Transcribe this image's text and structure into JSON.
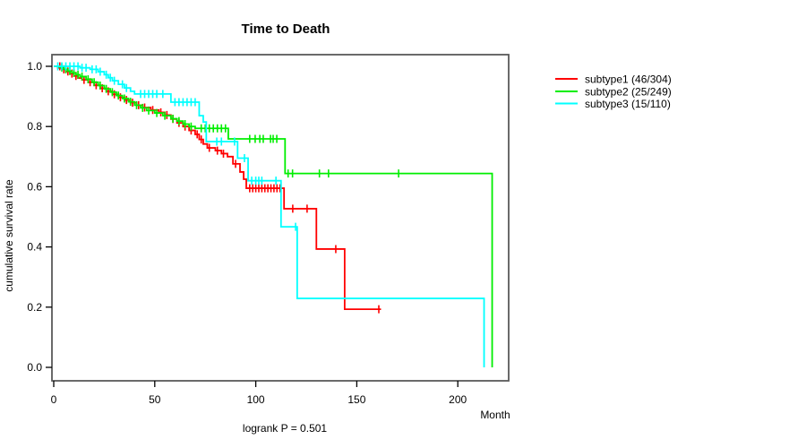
{
  "page": {
    "background_color": "#ffffff"
  },
  "chart_data": {
    "type": "line",
    "chart_kind": "kaplan-meier-survival",
    "title": "Time to Death",
    "xlabel": "Month",
    "ylabel": "cumulative survival rate",
    "annotation": "logrank P = 0.501",
    "xlim": [
      0,
      225
    ],
    "ylim": [
      0,
      1.04
    ],
    "grid": false,
    "legend_position": "right-outside",
    "x_ticks": [
      0,
      50,
      100,
      150,
      200
    ],
    "y_ticks": [
      {
        "label": "0.0",
        "value": 0.0
      },
      {
        "label": "0.2",
        "value": 0.2
      },
      {
        "label": "0.4",
        "value": 0.4
      },
      {
        "label": "0.6",
        "value": 0.6
      },
      {
        "label": "0.8",
        "value": 0.8
      },
      {
        "label": "1.0",
        "value": 1.0
      }
    ],
    "series": [
      {
        "name": "subtype1",
        "legend_label": "subtype1 (46/304)",
        "color": "#ff0000",
        "events": 46,
        "n": 304,
        "end_time": 162,
        "steps": [
          [
            0,
            1.0
          ],
          [
            2,
            0.995
          ],
          [
            4,
            0.99
          ],
          [
            6,
            0.983
          ],
          [
            8,
            0.976
          ],
          [
            10,
            0.968
          ],
          [
            12,
            0.961
          ],
          [
            14,
            0.955
          ],
          [
            17,
            0.947
          ],
          [
            20,
            0.937
          ],
          [
            23,
            0.927
          ],
          [
            26,
            0.917
          ],
          [
            29,
            0.907
          ],
          [
            32,
            0.897
          ],
          [
            35,
            0.888
          ],
          [
            38,
            0.879
          ],
          [
            41,
            0.871
          ],
          [
            44,
            0.863
          ],
          [
            48,
            0.855
          ],
          [
            52,
            0.847
          ],
          [
            55,
            0.838
          ],
          [
            58,
            0.825
          ],
          [
            61,
            0.812
          ],
          [
            64,
            0.8
          ],
          [
            67,
            0.787
          ],
          [
            70,
            0.774
          ],
          [
            72,
            0.757
          ],
          [
            74,
            0.742
          ],
          [
            76,
            0.729
          ],
          [
            80,
            0.72
          ],
          [
            83,
            0.71
          ],
          [
            86,
            0.7
          ],
          [
            88.7,
            0.676
          ],
          [
            92.2,
            0.649
          ],
          [
            94,
            0.625
          ],
          [
            95.3,
            0.595
          ],
          [
            114,
            0.527
          ],
          [
            130,
            0.393
          ],
          [
            144,
            0.193
          ]
        ],
        "censors": [
          [
            3,
            1.0
          ],
          [
            5,
            0.99
          ],
          [
            7,
            0.983
          ],
          [
            9,
            0.976
          ],
          [
            11,
            0.968
          ],
          [
            15,
            0.955
          ],
          [
            18,
            0.947
          ],
          [
            21,
            0.937
          ],
          [
            24,
            0.927
          ],
          [
            27,
            0.917
          ],
          [
            30,
            0.907
          ],
          [
            33,
            0.897
          ],
          [
            36,
            0.888
          ],
          [
            39,
            0.879
          ],
          [
            42,
            0.871
          ],
          [
            45,
            0.863
          ],
          [
            49,
            0.855
          ],
          [
            53,
            0.847
          ],
          [
            56,
            0.838
          ],
          [
            59,
            0.825
          ],
          [
            62,
            0.812
          ],
          [
            65,
            0.8
          ],
          [
            68,
            0.787
          ],
          [
            71,
            0.774
          ],
          [
            73,
            0.757
          ],
          [
            77,
            0.729
          ],
          [
            81,
            0.72
          ],
          [
            84,
            0.71
          ],
          [
            90,
            0.676
          ],
          [
            97,
            0.595
          ],
          [
            98.5,
            0.595
          ],
          [
            100,
            0.595
          ],
          [
            101.5,
            0.595
          ],
          [
            103,
            0.595
          ],
          [
            104.5,
            0.595
          ],
          [
            106,
            0.595
          ],
          [
            107.5,
            0.595
          ],
          [
            109,
            0.595
          ],
          [
            110.5,
            0.595
          ],
          [
            112,
            0.595
          ],
          [
            118.3,
            0.527
          ],
          [
            125.4,
            0.527
          ],
          [
            139.6,
            0.393
          ],
          [
            160.9,
            0.193
          ]
        ]
      },
      {
        "name": "subtype2",
        "legend_label": "subtype2 (25/249)",
        "color": "#00ee00",
        "events": 25,
        "n": 249,
        "end_time": 217,
        "steps": [
          [
            0,
            1.0
          ],
          [
            3,
            0.996
          ],
          [
            5,
            0.99
          ],
          [
            7,
            0.984
          ],
          [
            9,
            0.978
          ],
          [
            11,
            0.972
          ],
          [
            13,
            0.966
          ],
          [
            16,
            0.957
          ],
          [
            19,
            0.947
          ],
          [
            22,
            0.936
          ],
          [
            25,
            0.925
          ],
          [
            28,
            0.914
          ],
          [
            31,
            0.903
          ],
          [
            34,
            0.893
          ],
          [
            37,
            0.882
          ],
          [
            40,
            0.871
          ],
          [
            43,
            0.862
          ],
          [
            46,
            0.853
          ],
          [
            50,
            0.845
          ],
          [
            54,
            0.836
          ],
          [
            58,
            0.826
          ],
          [
            61,
            0.818
          ],
          [
            64,
            0.808
          ],
          [
            67,
            0.8
          ],
          [
            70,
            0.794
          ],
          [
            86.4,
            0.759
          ],
          [
            114.5,
            0.644
          ],
          [
            217,
            0.0
          ]
        ],
        "censors": [
          [
            4,
            0.996
          ],
          [
            6,
            0.99
          ],
          [
            8,
            0.984
          ],
          [
            10,
            0.978
          ],
          [
            12,
            0.972
          ],
          [
            14,
            0.966
          ],
          [
            17,
            0.957
          ],
          [
            20,
            0.947
          ],
          [
            23,
            0.936
          ],
          [
            26,
            0.925
          ],
          [
            29,
            0.914
          ],
          [
            32,
            0.903
          ],
          [
            35,
            0.893
          ],
          [
            38,
            0.882
          ],
          [
            41,
            0.871
          ],
          [
            44,
            0.862
          ],
          [
            47,
            0.853
          ],
          [
            51,
            0.845
          ],
          [
            55,
            0.836
          ],
          [
            59,
            0.826
          ],
          [
            62,
            0.818
          ],
          [
            65,
            0.808
          ],
          [
            68,
            0.8
          ],
          [
            73,
            0.794
          ],
          [
            75,
            0.794
          ],
          [
            77,
            0.794
          ],
          [
            79,
            0.794
          ],
          [
            81,
            0.794
          ],
          [
            83,
            0.794
          ],
          [
            85,
            0.794
          ],
          [
            97,
            0.759
          ],
          [
            99.7,
            0.759
          ],
          [
            102,
            0.759
          ],
          [
            103.7,
            0.759
          ],
          [
            107.3,
            0.759
          ],
          [
            108.6,
            0.759
          ],
          [
            110.4,
            0.759
          ],
          [
            116,
            0.644
          ],
          [
            118.2,
            0.644
          ],
          [
            131.5,
            0.644
          ],
          [
            136,
            0.644
          ],
          [
            170.7,
            0.644
          ]
        ]
      },
      {
        "name": "subtype3",
        "legend_label": "subtype3 (15/110)",
        "color": "#00ffff",
        "events": 15,
        "n": 110,
        "end_time": 213,
        "steps": [
          [
            0,
            1.0
          ],
          [
            13,
            0.995
          ],
          [
            18,
            0.99
          ],
          [
            22,
            0.982
          ],
          [
            25,
            0.972
          ],
          [
            27,
            0.962
          ],
          [
            29,
            0.952
          ],
          [
            32,
            0.94
          ],
          [
            35,
            0.928
          ],
          [
            38,
            0.917
          ],
          [
            40,
            0.908
          ],
          [
            58,
            0.881
          ],
          [
            72,
            0.836
          ],
          [
            74,
            0.815
          ],
          [
            75.5,
            0.75
          ],
          [
            91,
            0.695
          ],
          [
            96.2,
            0.62
          ],
          [
            112.5,
            0.467
          ],
          [
            120.5,
            0.229
          ],
          [
            213,
            0.0
          ]
        ],
        "censors": [
          [
            2,
            1.0
          ],
          [
            4,
            1.0
          ],
          [
            6,
            1.0
          ],
          [
            8,
            1.0
          ],
          [
            10,
            1.0
          ],
          [
            12,
            1.0
          ],
          [
            14,
            0.995
          ],
          [
            16,
            0.995
          ],
          [
            19,
            0.99
          ],
          [
            21,
            0.99
          ],
          [
            23,
            0.982
          ],
          [
            26,
            0.972
          ],
          [
            28,
            0.962
          ],
          [
            30,
            0.952
          ],
          [
            34,
            0.94
          ],
          [
            36,
            0.928
          ],
          [
            43,
            0.908
          ],
          [
            45,
            0.908
          ],
          [
            47,
            0.908
          ],
          [
            49,
            0.908
          ],
          [
            51,
            0.908
          ],
          [
            54,
            0.908
          ],
          [
            60,
            0.881
          ],
          [
            62,
            0.881
          ],
          [
            64,
            0.881
          ],
          [
            66,
            0.881
          ],
          [
            68,
            0.881
          ],
          [
            70,
            0.881
          ],
          [
            80.7,
            0.75
          ],
          [
            83,
            0.75
          ],
          [
            89.5,
            0.75
          ],
          [
            94.4,
            0.695
          ],
          [
            98,
            0.62
          ],
          [
            100,
            0.62
          ],
          [
            101.5,
            0.62
          ],
          [
            103,
            0.62
          ],
          [
            110,
            0.62
          ],
          [
            119.7,
            0.467
          ]
        ]
      }
    ]
  }
}
